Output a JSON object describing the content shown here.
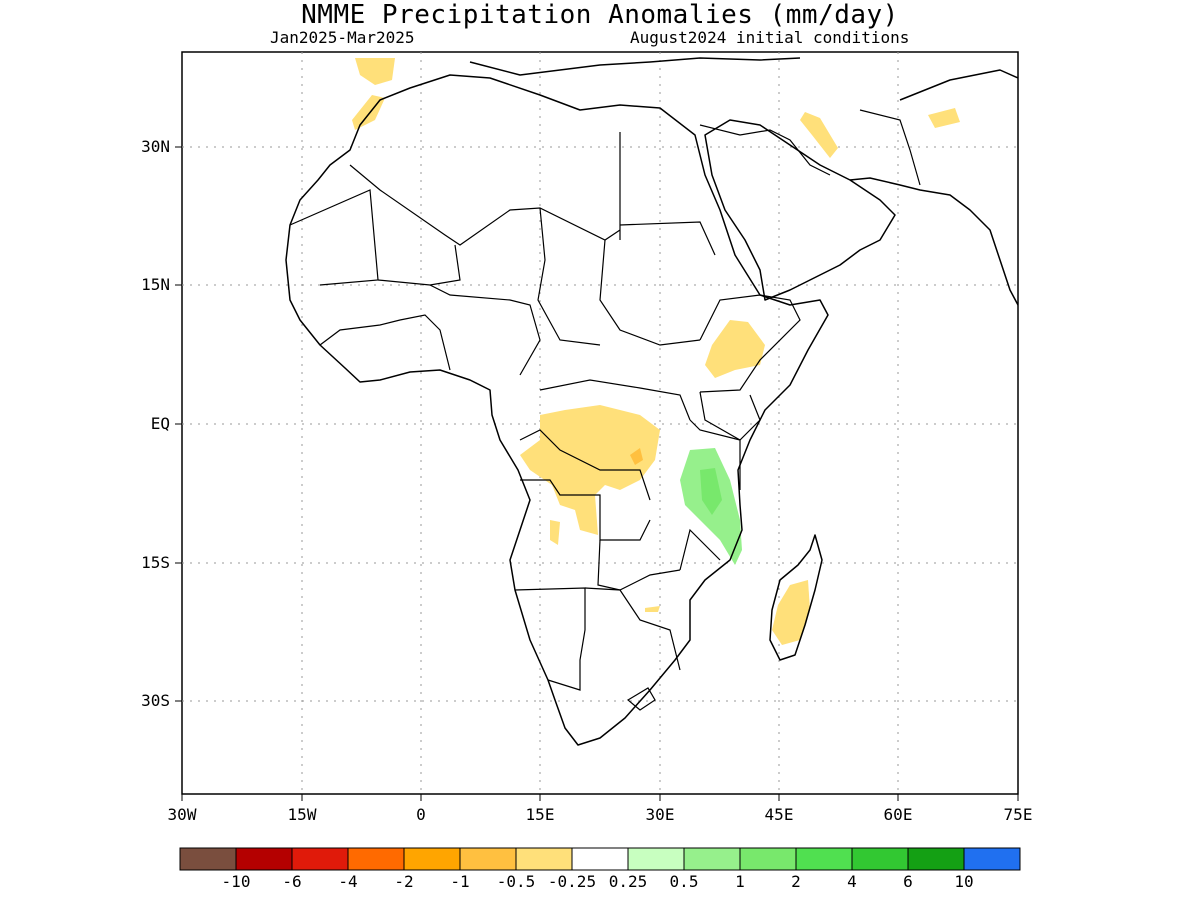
{
  "title": "NMME Precipitation Anomalies (mm/day)",
  "subtitle_left": "Jan2025-Mar2025",
  "subtitle_right": "August2024 initial conditions",
  "map": {
    "lon_range": [
      -30,
      75
    ],
    "lat_range": [
      -40,
      40
    ],
    "y_ticks": [
      "30N",
      "15N",
      "EQ",
      "15S",
      "30S"
    ],
    "x_ticks": [
      "30W",
      "15W",
      "0",
      "15E",
      "30E",
      "45E",
      "60E",
      "75E"
    ],
    "grid": true
  },
  "colorbar": {
    "colors": [
      "#7a4e3e",
      "#b40000",
      "#e01a0a",
      "#ff6a00",
      "#ffa500",
      "#ffc040",
      "#ffe07a",
      "#ffffff",
      "#c8ffc0",
      "#96f08c",
      "#78e86c",
      "#50e050",
      "#32c832",
      "#14a014",
      "#2070f0"
    ],
    "labels": [
      "-10",
      "-6",
      "-4",
      "-2",
      "-1",
      "-0.5",
      "-0.25",
      "0.25",
      "0.5",
      "1",
      "2",
      "4",
      "6",
      "10"
    ]
  },
  "anomaly_regions": [
    {
      "name": "central-africa-dry",
      "category": "-0.5 to -0.25",
      "color": "#ffe07a"
    },
    {
      "name": "east-africa-wet",
      "category": "0.5 to 1",
      "color": "#96f08c"
    },
    {
      "name": "madagascar-dry",
      "category": "-0.5 to -0.25",
      "color": "#ffe07a"
    },
    {
      "name": "ethiopia-dry",
      "category": "-0.5 to -0.25",
      "color": "#ffe07a"
    }
  ]
}
